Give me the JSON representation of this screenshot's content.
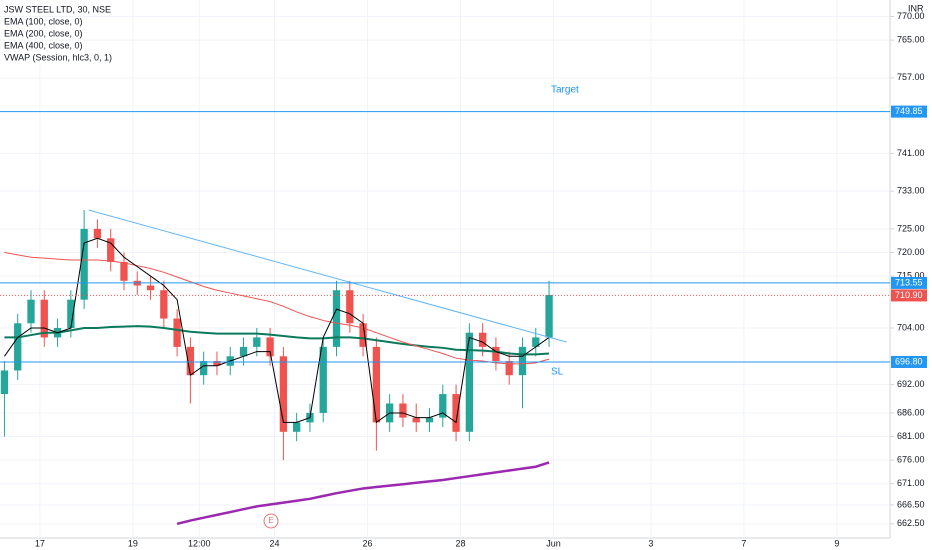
{
  "chart_data": {
    "type": "candlestick",
    "title": "JSW STEEL LTD, 30, NSE",
    "indicators": [
      "EMA (100, close, 0)",
      "EMA (200, close, 0)",
      "EMA (400, close, 0)",
      "VWAP (Session, hlc3, 0, 1)"
    ],
    "currency": "INR",
    "event_marker": "E",
    "x": [
      0,
      3,
      6,
      9,
      12,
      15,
      18,
      21,
      24,
      27,
      30,
      33,
      36,
      39,
      42,
      45,
      48,
      51,
      54,
      57,
      60,
      63,
      66,
      69,
      72,
      75,
      78,
      81,
      84,
      87,
      90,
      93,
      96,
      99,
      102,
      105,
      108,
      111,
      114,
      117,
      120,
      123
    ],
    "open": [
      690,
      695,
      705,
      710,
      702,
      704,
      710,
      725,
      723,
      718,
      714,
      713,
      712,
      706,
      700,
      694,
      697,
      696,
      698,
      700,
      702,
      698,
      682,
      684,
      686,
      700,
      712,
      705,
      700,
      684,
      688,
      685,
      684,
      685,
      690,
      682,
      703,
      700,
      697,
      694,
      700,
      702
    ],
    "high": [
      697,
      707,
      712,
      712,
      706,
      712,
      729,
      727,
      725,
      720,
      716,
      715,
      714,
      708,
      702,
      699,
      699,
      700,
      702,
      704,
      704,
      700,
      686,
      688,
      702,
      714,
      714,
      707,
      702,
      690,
      690,
      688,
      687,
      692,
      692,
      705,
      705,
      702,
      699,
      702,
      704,
      714
    ],
    "low": [
      681,
      693,
      703,
      700,
      700,
      702,
      708,
      721,
      716,
      712,
      711,
      710,
      704,
      698,
      688,
      692,
      694,
      694,
      696,
      698,
      696,
      676,
      680,
      682,
      684,
      698,
      703,
      698,
      678,
      682,
      683,
      682,
      682,
      683,
      680,
      680,
      698,
      695,
      692,
      687,
      698,
      700
    ],
    "close": [
      695,
      705,
      710,
      702,
      704,
      710,
      725,
      723,
      718,
      714,
      713,
      712,
      706,
      700,
      694,
      697,
      696,
      698,
      700,
      702,
      698,
      682,
      684,
      686,
      700,
      712,
      705,
      700,
      684,
      688,
      685,
      684,
      685,
      690,
      682,
      703,
      700,
      697,
      694,
      700,
      702,
      711
    ],
    "series": [
      {
        "name": "EMA (100, close, 0)",
        "color": "#0b7a5c",
        "values": [
          702,
          702,
          702.5,
          703,
          703,
          703.5,
          704,
          704,
          704.2,
          704.3,
          704.4,
          704.3,
          704,
          703.6,
          703.2,
          703,
          702.8,
          702.8,
          702.8,
          702.8,
          702.6,
          702.3,
          702,
          701.8,
          701.8,
          702,
          702,
          701.8,
          701.4,
          701,
          700.6,
          700.3,
          700,
          699.8,
          699.4,
          699.3,
          699.2,
          699,
          698.6,
          698.4,
          698.4,
          698.6
        ]
      },
      {
        "name": "EMA (200, close, 0)",
        "color": "#ef5350",
        "values": [
          720,
          719.5,
          719,
          718.8,
          718.6,
          718.4,
          718.4,
          718.4,
          718.2,
          717.8,
          717.2,
          716.6,
          715.8,
          714.8,
          713.8,
          712.8,
          712,
          711.4,
          710.8,
          710.2,
          709.6,
          708.6,
          707.4,
          706.4,
          705.6,
          705,
          704.6,
          704,
          703,
          702,
          701,
          700.2,
          699.4,
          698.6,
          697.6,
          697.2,
          697,
          696.6,
          696.4,
          696.4,
          696.6,
          697.4
        ]
      },
      {
        "name": "EMA (400, close, 0)",
        "color": "#9c27b0",
        "values": [
          null,
          null,
          null,
          null,
          null,
          null,
          null,
          null,
          null,
          null,
          null,
          null,
          null,
          662.5,
          663.2,
          663.8,
          664.4,
          665,
          665.6,
          666.2,
          666.6,
          667,
          667.4,
          667.8,
          668.4,
          669,
          669.5,
          670,
          670.3,
          670.6,
          670.9,
          671.2,
          671.5,
          671.8,
          672.2,
          672.6,
          673,
          673.4,
          673.8,
          674.2,
          674.6,
          675.5
        ]
      },
      {
        "name": "VWAP (Session, hlc3, 0, 1)",
        "color": "#000000",
        "values": [
          698,
          702,
          704,
          704,
          703,
          704,
          722,
          723,
          722,
          719,
          717,
          715,
          713,
          710,
          694,
          696,
          696,
          697,
          698,
          699,
          699,
          684,
          684,
          685,
          702,
          708,
          707,
          705,
          684,
          686,
          686,
          685,
          685,
          686,
          684,
          702,
          701,
          699,
          698,
          698,
          700,
          702
        ]
      }
    ],
    "levels": [
      {
        "value": 749.85,
        "label": "749.85",
        "color": "#2196f3",
        "note": "Target"
      },
      {
        "value": 713.55,
        "label": "713.55",
        "color": "#2196f3"
      },
      {
        "value": 696.8,
        "label": "696.80",
        "color": "#2196f3",
        "note": "SL"
      }
    ],
    "last_price": {
      "value": 710.9,
      "label": "710.90",
      "color": "#ef5350"
    },
    "trendline": {
      "x": [
        19,
        127
      ],
      "y": [
        729,
        701
      ],
      "color": "#64b5f6"
    },
    "xlim": [
      -1,
      200
    ],
    "xticks": [
      {
        "value": 8,
        "label": "17"
      },
      {
        "value": 29,
        "label": "19"
      },
      {
        "value": 44,
        "label": "12:00"
      },
      {
        "value": 61,
        "label": "24"
      },
      {
        "value": 82,
        "label": "26"
      },
      {
        "value": 103,
        "label": "28"
      },
      {
        "value": 124,
        "label": "Jun"
      },
      {
        "value": 146,
        "label": "3"
      },
      {
        "value": 167,
        "label": "7"
      },
      {
        "value": 188,
        "label": "9"
      }
    ],
    "ylim": [
      659.5,
      773.5
    ],
    "yticks": [
      {
        "value": 770,
        "label": "770.00"
      },
      {
        "value": 765,
        "label": "765.00"
      },
      {
        "value": 757,
        "label": "757.00"
      },
      {
        "value": 741,
        "label": "741.00"
      },
      {
        "value": 733,
        "label": "733.00"
      },
      {
        "value": 725,
        "label": "725.00"
      },
      {
        "value": 720,
        "label": "720.00"
      },
      {
        "value": 715,
        "label": "715.00"
      },
      {
        "value": 704,
        "label": "704.00"
      },
      {
        "value": 692,
        "label": "692.00"
      },
      {
        "value": 686,
        "label": "686.00"
      },
      {
        "value": 681,
        "label": "681.00"
      },
      {
        "value": 676,
        "label": "676.00"
      },
      {
        "value": 671,
        "label": "671.00"
      },
      {
        "value": 666.5,
        "label": "666.50"
      },
      {
        "value": 662.5,
        "label": "662.50"
      }
    ],
    "up_color": "#26a69a",
    "down_color": "#ef5350",
    "grid": true
  }
}
